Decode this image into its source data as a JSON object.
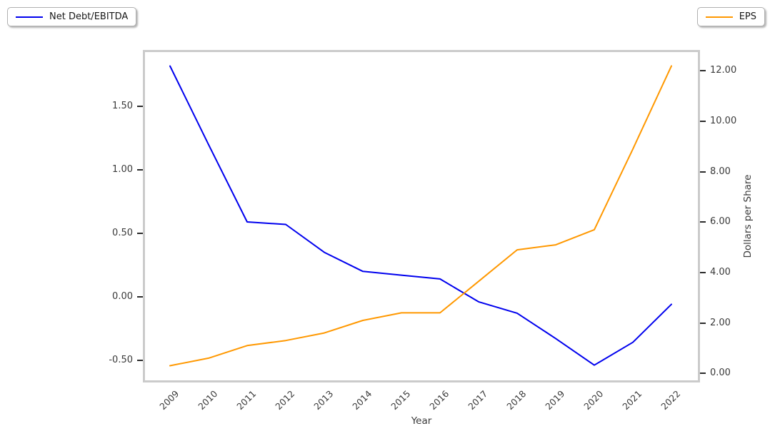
{
  "figure": {
    "background": "#ffffff",
    "legend_left": {
      "label": "Net Debt/EBITDA",
      "color": "#0000ee"
    },
    "legend_right": {
      "label": "EPS",
      "color": "#ff9800"
    },
    "xlabel": "Year",
    "ylabel_right": "Dollars per Share"
  },
  "chart_data": {
    "type": "line",
    "title": "",
    "xlabel": "Year",
    "ylabel_left": "",
    "ylabel_right": "Dollars per Share",
    "x": [
      2009,
      2010,
      2011,
      2012,
      2013,
      2014,
      2015,
      2016,
      2017,
      2018,
      2019,
      2020,
      2021,
      2022
    ],
    "series": [
      {
        "name": "Net Debt/EBITDA",
        "axis": "left",
        "color": "#0000ee",
        "values": [
          1.82,
          1.2,
          0.59,
          0.57,
          0.35,
          0.2,
          0.17,
          0.14,
          -0.04,
          -0.13,
          -0.33,
          -0.54,
          -0.36,
          -0.06
        ]
      },
      {
        "name": "EPS",
        "axis": "right",
        "color": "#ff9800",
        "values": [
          0.3,
          0.6,
          1.1,
          1.3,
          1.6,
          2.1,
          2.4,
          2.4,
          3.65,
          4.9,
          5.1,
          5.7,
          8.9,
          12.2
        ]
      }
    ],
    "ylim_left": [
      -0.66,
      1.93
    ],
    "ylim_right": [
      -0.28,
      12.75
    ],
    "yticks_left": [
      "1.50",
      "1.00",
      "0.50",
      "0.00",
      "-0.50"
    ],
    "yticks_right": [
      "12.00",
      "10.00",
      "8.00",
      "6.00",
      "4.00",
      "2.00",
      "0.00"
    ],
    "xticks": [
      "2009",
      "2010",
      "2011",
      "2012",
      "2013",
      "2014",
      "2015",
      "2016",
      "2017",
      "2018",
      "2019",
      "2020",
      "2021",
      "2022"
    ],
    "grid": false,
    "legend_position": [
      "outside-upper-left",
      "outside-upper-right"
    ]
  }
}
